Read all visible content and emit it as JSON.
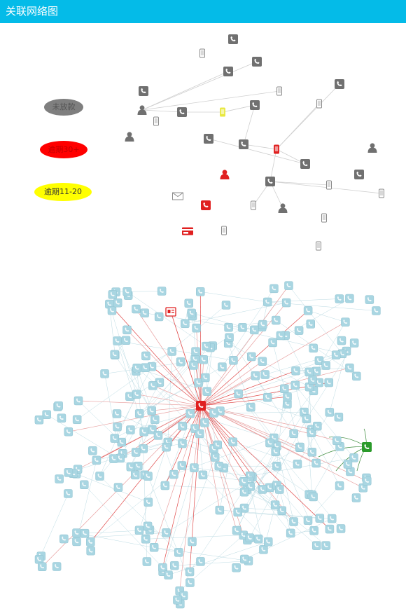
{
  "header": {
    "title": "关联网络图"
  },
  "legend": [
    {
      "label": "未放款",
      "color": "#808080"
    },
    {
      "label": "逾期30+",
      "color": "#ff0000"
    },
    {
      "label": "逾期11-20",
      "color": "#ffff00"
    }
  ],
  "colors": {
    "header": "#04bbe8",
    "gray_node": "#707070",
    "red_node": "#e02020",
    "yellow_node": "#e8e840",
    "cyan_node": "#a9d6e2",
    "green_node": "#2a9a2a",
    "edge": "#cfcfcf",
    "red_edge": "#e04848",
    "green_edge": "#3a8a3a"
  },
  "top_graph": {
    "nodes": [
      {
        "id": "t1",
        "icon": "phone-icon",
        "color": "gray"
      },
      {
        "id": "t2",
        "icon": "mobile-icon",
        "color": "gray"
      },
      {
        "id": "t3",
        "icon": "person-icon",
        "color": "gray"
      },
      {
        "id": "t4",
        "icon": "phone-icon",
        "color": "gray"
      },
      {
        "id": "t5",
        "icon": "mobile-icon",
        "color": "gray"
      },
      {
        "id": "t6",
        "icon": "phone-icon",
        "color": "gray"
      },
      {
        "id": "t7",
        "icon": "phone-icon",
        "color": "gray"
      },
      {
        "id": "t8",
        "icon": "person-icon",
        "color": "gray"
      },
      {
        "id": "t9",
        "icon": "mobile-icon",
        "color": "gray"
      },
      {
        "id": "t10",
        "icon": "phone-icon",
        "color": "gray"
      },
      {
        "id": "t11",
        "icon": "mobile-icon",
        "color": "yellow"
      },
      {
        "id": "t12",
        "icon": "phone-icon",
        "color": "gray"
      },
      {
        "id": "t13",
        "icon": "mobile-icon",
        "color": "gray"
      },
      {
        "id": "t14",
        "icon": "phone-icon",
        "color": "gray"
      },
      {
        "id": "t15",
        "icon": "phone-icon",
        "color": "gray"
      },
      {
        "id": "t16",
        "icon": "mobile-icon",
        "color": "red"
      },
      {
        "id": "t17",
        "icon": "person-icon",
        "color": "gray"
      },
      {
        "id": "t18",
        "icon": "person-icon",
        "color": "red"
      },
      {
        "id": "t19",
        "icon": "phone-icon",
        "color": "gray"
      },
      {
        "id": "t20",
        "icon": "phone-icon",
        "color": "gray"
      },
      {
        "id": "t21",
        "icon": "phone-icon",
        "color": "gray"
      },
      {
        "id": "t22",
        "icon": "mobile-icon",
        "color": "gray"
      },
      {
        "id": "t23",
        "icon": "mobile-icon",
        "color": "gray"
      },
      {
        "id": "t24",
        "icon": "mail-icon",
        "color": "gray"
      },
      {
        "id": "t25",
        "icon": "phone-icon",
        "color": "red"
      },
      {
        "id": "t26",
        "icon": "mobile-icon",
        "color": "gray"
      },
      {
        "id": "t27",
        "icon": "person-icon",
        "color": "gray"
      },
      {
        "id": "t28",
        "icon": "phone-icon",
        "color": "gray"
      },
      {
        "id": "t29",
        "icon": "card-icon",
        "color": "red"
      },
      {
        "id": "t30",
        "icon": "mobile-icon",
        "color": "gray"
      },
      {
        "id": "t31",
        "icon": "mobile-icon",
        "color": "gray"
      },
      {
        "id": "t32",
        "icon": "mobile-icon",
        "color": "gray"
      }
    ],
    "edges": [
      [
        "t6",
        "t8"
      ],
      [
        "t8",
        "t10"
      ],
      [
        "t8",
        "t7"
      ],
      [
        "t8",
        "t9"
      ],
      [
        "t10",
        "t11"
      ],
      [
        "t11",
        "t12"
      ],
      [
        "t12",
        "t15"
      ],
      [
        "t15",
        "t16"
      ],
      [
        "t16",
        "t13"
      ],
      [
        "t16",
        "t14"
      ],
      [
        "t16",
        "t20"
      ],
      [
        "t16",
        "t21"
      ],
      [
        "t20",
        "t22"
      ],
      [
        "t20",
        "t23"
      ],
      [
        "t20",
        "t26"
      ],
      [
        "t20",
        "t27"
      ],
      [
        "t21",
        "t19"
      ],
      [
        "t12",
        "t11"
      ]
    ]
  }
}
